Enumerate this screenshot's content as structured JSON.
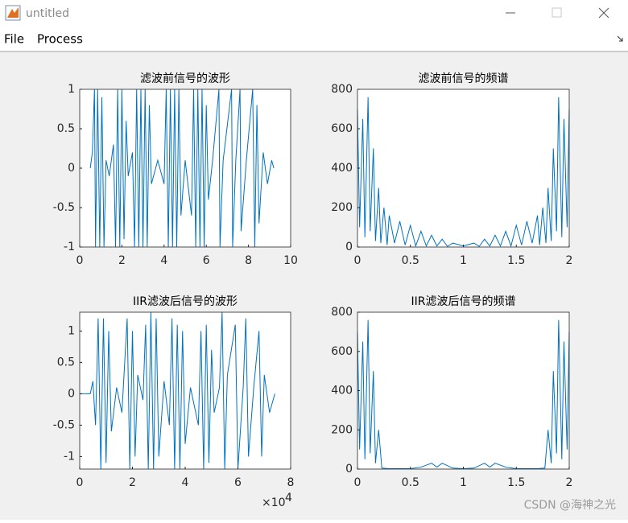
{
  "window": {
    "title": "untitled",
    "menu": [
      "File",
      "Process"
    ]
  },
  "watermark": "CSDN @海神之光",
  "chart_data": [
    {
      "type": "line",
      "title": "滤波前信号的波形",
      "color": "#0072bd",
      "xlim": [
        0,
        10
      ],
      "xticks": [
        0,
        2,
        4,
        6,
        8,
        10
      ],
      "ylim": [
        -1,
        1
      ],
      "yticks": [
        -1,
        -0.5,
        0,
        0.5,
        1
      ],
      "x": [
        0.5,
        0.6,
        0.7,
        0.75,
        0.85,
        0.95,
        1.05,
        1.15,
        1.25,
        1.4,
        1.6,
        1.7,
        1.8,
        1.9,
        2.0,
        2.1,
        2.2,
        2.3,
        2.5,
        2.6,
        2.7,
        2.8,
        2.9,
        3.0,
        3.1,
        3.2,
        3.3,
        3.4,
        3.7,
        4.0,
        4.1,
        4.2,
        4.3,
        4.4,
        4.5,
        4.6,
        4.7,
        4.8,
        5.0,
        5.3,
        5.4,
        5.5,
        5.6,
        5.7,
        5.8,
        5.9,
        6.0,
        6.1,
        6.3,
        6.6,
        6.65,
        6.8,
        7.2,
        7.25,
        7.4,
        7.6,
        7.65,
        7.9,
        8.2,
        8.3,
        8.4,
        8.5,
        8.7,
        8.9,
        9.1,
        9.2
      ],
      "values": [
        0,
        0.2,
        1,
        -1,
        1,
        -1,
        0.9,
        -1,
        0.1,
        -0.1,
        0.3,
        -1,
        1,
        -1,
        1,
        -0.9,
        0.6,
        -0.1,
        0.2,
        -1,
        1,
        -1,
        1,
        -1,
        1,
        -1,
        0.8,
        -0.2,
        0.1,
        -0.2,
        1,
        -1,
        1,
        -1,
        1,
        -1,
        1,
        -0.6,
        0.1,
        -0.6,
        1,
        -1,
        1,
        -1,
        1,
        -1,
        0.8,
        -0.4,
        0.1,
        1,
        -1,
        0.1,
        1,
        -1,
        0.1,
        1,
        -0.8,
        0.1,
        1,
        -1,
        0.8,
        -0.7,
        0.2,
        -0.2,
        0.1,
        0
      ]
    },
    {
      "type": "line",
      "title": "滤波前信号的频谱",
      "color": "#0072bd",
      "xlim": [
        0,
        2
      ],
      "xticks": [
        0,
        0.5,
        1,
        1.5,
        2
      ],
      "ylim": [
        0,
        800
      ],
      "yticks": [
        0,
        200,
        400,
        600,
        800
      ],
      "x": [
        0,
        0.02,
        0.05,
        0.07,
        0.1,
        0.12,
        0.15,
        0.17,
        0.2,
        0.22,
        0.25,
        0.28,
        0.3,
        0.35,
        0.4,
        0.45,
        0.5,
        0.55,
        0.6,
        0.65,
        0.7,
        0.75,
        0.8,
        0.85,
        0.9,
        1.0,
        1.1,
        1.15,
        1.2,
        1.25,
        1.3,
        1.35,
        1.4,
        1.45,
        1.5,
        1.55,
        1.6,
        1.65,
        1.7,
        1.72,
        1.75,
        1.78,
        1.8,
        1.83,
        1.85,
        1.88,
        1.9,
        1.93,
        1.95,
        1.98,
        2.0
      ],
      "values": [
        700,
        100,
        650,
        50,
        760,
        80,
        500,
        30,
        300,
        20,
        200,
        10,
        160,
        20,
        130,
        10,
        110,
        5,
        80,
        5,
        60,
        5,
        40,
        3,
        20,
        5,
        20,
        3,
        40,
        5,
        60,
        5,
        80,
        5,
        110,
        10,
        130,
        20,
        160,
        10,
        200,
        20,
        300,
        30,
        500,
        80,
        760,
        50,
        650,
        100,
        700
      ]
    },
    {
      "type": "line",
      "title": "IIR滤波后信号的波形",
      "color": "#0072bd",
      "xlim": [
        0,
        8
      ],
      "xticks": [
        0,
        2,
        4,
        6,
        8
      ],
      "ylim": [
        -1.2,
        1.3
      ],
      "yticks": [
        -1,
        -0.5,
        0,
        0.5,
        1
      ],
      "x_multiplier": "×10",
      "x_multiplier_power": "4",
      "x": [
        0,
        0.4,
        0.5,
        0.6,
        0.7,
        0.8,
        0.9,
        1.0,
        1.1,
        1.2,
        1.4,
        1.6,
        1.8,
        1.9,
        2.0,
        2.1,
        2.2,
        2.4,
        2.5,
        2.6,
        2.7,
        2.8,
        2.9,
        3.0,
        3.2,
        3.4,
        3.5,
        3.6,
        3.7,
        3.8,
        3.9,
        4.0,
        4.2,
        4.5,
        4.6,
        4.7,
        4.8,
        4.9,
        5.0,
        5.1,
        5.3,
        5.4,
        5.5,
        5.6,
        5.9,
        6.0,
        6.2,
        6.3,
        6.4,
        6.6,
        6.8,
        6.9,
        7.0,
        7.2,
        7.4
      ],
      "values": [
        0,
        0,
        0.2,
        -0.5,
        1.2,
        -1.2,
        1.2,
        -1.1,
        1.0,
        -0.6,
        0.1,
        -0.3,
        1.2,
        -1.2,
        1.0,
        -1.0,
        0.3,
        -0.1,
        1.1,
        -1.2,
        1.3,
        -1.2,
        1.2,
        -1.0,
        0.2,
        -0.5,
        1.2,
        -1.2,
        1.1,
        -1.2,
        1.0,
        -0.8,
        0.1,
        -0.5,
        1.0,
        -1.2,
        1.1,
        -1.1,
        0.7,
        -0.3,
        0.1,
        1.3,
        -1.2,
        0.3,
        1.1,
        -1.2,
        0.1,
        1.2,
        -1.0,
        0.1,
        1.0,
        -1.0,
        0.3,
        -0.3,
        0
      ]
    },
    {
      "type": "line",
      "title": "IIR滤波后信号的频谱",
      "color": "#0072bd",
      "xlim": [
        0,
        2
      ],
      "xticks": [
        0,
        0.5,
        1,
        1.5,
        2
      ],
      "ylim": [
        0,
        800
      ],
      "yticks": [
        0,
        200,
        400,
        600,
        800
      ],
      "x": [
        0,
        0.02,
        0.05,
        0.07,
        0.1,
        0.12,
        0.15,
        0.17,
        0.2,
        0.23,
        0.3,
        0.5,
        0.6,
        0.7,
        0.75,
        0.8,
        0.9,
        1.0,
        1.1,
        1.2,
        1.25,
        1.3,
        1.4,
        1.5,
        1.7,
        1.77,
        1.8,
        1.83,
        1.85,
        1.88,
        1.9,
        1.93,
        1.95,
        1.98,
        2.0
      ],
      "values": [
        700,
        100,
        650,
        50,
        760,
        80,
        500,
        30,
        200,
        5,
        2,
        2,
        10,
        30,
        10,
        30,
        5,
        2,
        5,
        30,
        10,
        30,
        10,
        2,
        2,
        5,
        200,
        30,
        500,
        80,
        760,
        50,
        650,
        100,
        700
      ]
    }
  ]
}
